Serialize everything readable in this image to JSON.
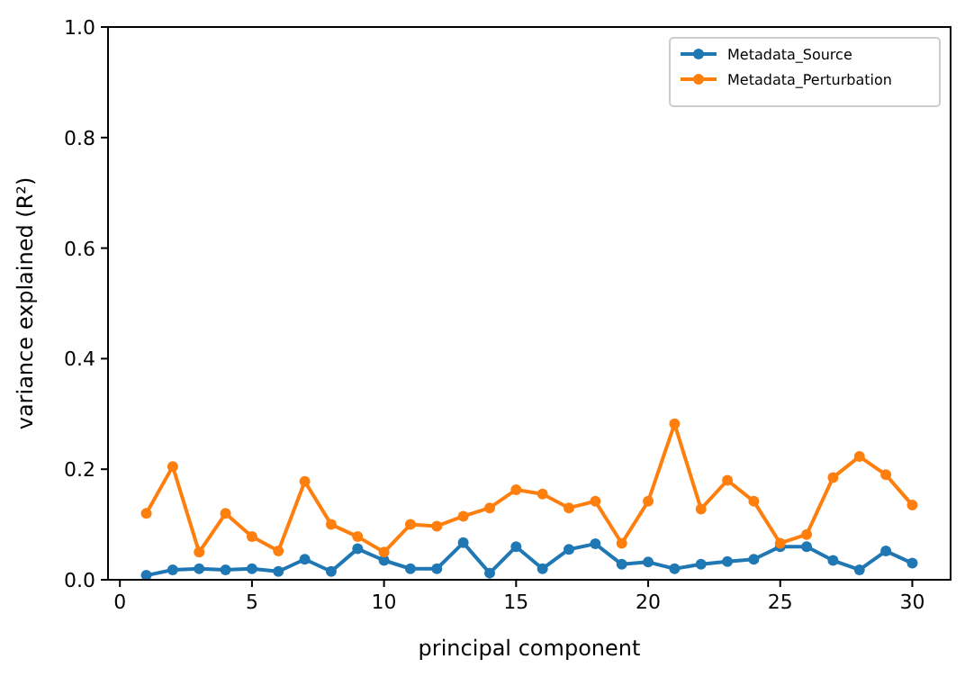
{
  "chart_data": {
    "type": "line",
    "xlabel": "principal component",
    "ylabel": "variance explained (R²)",
    "x": [
      1,
      2,
      3,
      4,
      5,
      6,
      7,
      8,
      9,
      10,
      11,
      12,
      13,
      14,
      15,
      16,
      17,
      18,
      19,
      20,
      21,
      22,
      23,
      24,
      25,
      26,
      27,
      28,
      29,
      30
    ],
    "series": [
      {
        "name": "Metadata_Source",
        "color": "#1f77b4",
        "values": [
          0.008,
          0.018,
          0.02,
          0.018,
          0.02,
          0.015,
          0.037,
          0.015,
          0.056,
          0.035,
          0.02,
          0.02,
          0.067,
          0.012,
          0.06,
          0.02,
          0.055,
          0.065,
          0.028,
          0.032,
          0.02,
          0.028,
          0.033,
          0.037,
          0.06,
          0.06,
          0.035,
          0.018,
          0.052,
          0.03
        ]
      },
      {
        "name": "Metadata_Perturbation",
        "color": "#ff7f0e",
        "values": [
          0.12,
          0.205,
          0.05,
          0.12,
          0.078,
          0.052,
          0.178,
          0.1,
          0.078,
          0.05,
          0.1,
          0.097,
          0.115,
          0.13,
          0.163,
          0.155,
          0.13,
          0.142,
          0.066,
          0.142,
          0.282,
          0.128,
          0.18,
          0.142,
          0.066,
          0.082,
          0.185,
          0.223,
          0.19,
          0.135
        ]
      }
    ],
    "xlim": [
      -0.45,
      31.45
    ],
    "xticks": [
      0,
      5,
      10,
      15,
      20,
      25,
      30
    ],
    "ylim": [
      0,
      1
    ],
    "yticks": [
      {
        "value": 0,
        "label": "0.0"
      },
      {
        "value": 0.2,
        "label": "0.2"
      },
      {
        "value": 0.4,
        "label": "0.4"
      },
      {
        "value": 0.6,
        "label": "0.6"
      },
      {
        "value": 0.8,
        "label": "0.8"
      },
      {
        "value": 1,
        "label": "1.0"
      }
    ],
    "legend": "top right",
    "marker": "circle",
    "grid": false
  }
}
